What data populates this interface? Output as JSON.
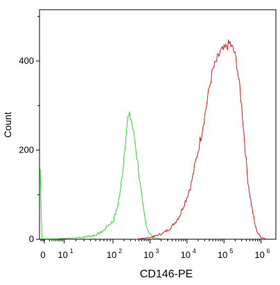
{
  "chart_data": {
    "type": "line",
    "xlabel": "CD146-PE",
    "ylabel": "Count",
    "xscale": "biexponential (log above ~10^2, linear near zero)",
    "ylim": [
      0,
      540
    ],
    "y_ticks": [
      {
        "value": 0,
        "label": "0"
      },
      {
        "value": 200,
        "label": "200"
      },
      {
        "value": 400,
        "label": "400"
      }
    ],
    "x_ticks": [
      {
        "value": 0,
        "base": "0",
        "exp": ""
      },
      {
        "value": 10,
        "base": "10",
        "exp": "1"
      },
      {
        "value": 100,
        "base": "10",
        "exp": "2"
      },
      {
        "value": 1000,
        "base": "10",
        "exp": "3"
      },
      {
        "value": 10000,
        "base": "10",
        "exp": "4"
      },
      {
        "value": 100000,
        "base": "10",
        "exp": "5"
      },
      {
        "value": 1000000,
        "base": "10",
        "exp": "6"
      }
    ],
    "grid": false,
    "legend": "none",
    "series": [
      {
        "color": "#22dd22",
        "style": "histogram, isotype control",
        "points": [
          [
            -50,
            158
          ],
          [
            -30,
            1
          ],
          [
            0,
            1
          ],
          [
            5,
            1
          ],
          [
            10,
            2
          ],
          [
            20,
            3
          ],
          [
            30,
            5
          ],
          [
            40,
            7
          ],
          [
            50,
            10
          ],
          [
            60,
            14
          ],
          [
            70,
            20
          ],
          [
            80,
            30
          ],
          [
            100,
            40
          ],
          [
            130,
            70
          ],
          [
            160,
            110
          ],
          [
            190,
            170
          ],
          [
            220,
            230
          ],
          [
            250,
            270
          ],
          [
            280,
            275
          ],
          [
            310,
            270
          ],
          [
            350,
            245
          ],
          [
            400,
            215
          ],
          [
            470,
            170
          ],
          [
            550,
            120
          ],
          [
            650,
            70
          ],
          [
            780,
            35
          ],
          [
            900,
            18
          ],
          [
            1100,
            8
          ],
          [
            1400,
            3
          ],
          [
            2000,
            1
          ]
        ]
      },
      {
        "color": "#ee1111",
        "style": "histogram, CD146-PE stained",
        "points": [
          [
            400,
            0
          ],
          [
            800,
            3
          ],
          [
            1200,
            5
          ],
          [
            1500,
            8
          ],
          [
            2000,
            12
          ],
          [
            2500,
            16
          ],
          [
            3200,
            22
          ],
          [
            4000,
            30
          ],
          [
            5000,
            40
          ],
          [
            6500,
            55
          ],
          [
            8000,
            75
          ],
          [
            10000,
            95
          ],
          [
            13000,
            125
          ],
          [
            16000,
            160
          ],
          [
            20000,
            200
          ],
          [
            25000,
            240
          ],
          [
            32000,
            290
          ],
          [
            40000,
            340
          ],
          [
            50000,
            380
          ],
          [
            63000,
            400
          ],
          [
            80000,
            420
          ],
          [
            100000,
            425
          ],
          [
            125000,
            435
          ],
          [
            145000,
            440
          ],
          [
            165000,
            430
          ],
          [
            190000,
            420
          ],
          [
            220000,
            395
          ],
          [
            250000,
            360
          ],
          [
            300000,
            300
          ],
          [
            360000,
            220
          ],
          [
            420000,
            150
          ],
          [
            500000,
            100
          ],
          [
            600000,
            60
          ],
          [
            700000,
            30
          ],
          [
            800000,
            15
          ],
          [
            1000000,
            5
          ],
          [
            1300000,
            1
          ]
        ]
      }
    ]
  }
}
